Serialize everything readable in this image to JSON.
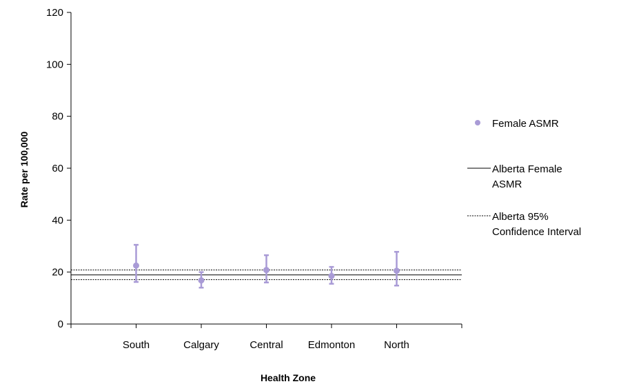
{
  "chart_data": {
    "type": "scatter",
    "title": "",
    "xlabel": "Health Zone",
    "ylabel": "Rate per 100,000",
    "ylim": [
      0,
      120
    ],
    "yticks": [
      0,
      20,
      40,
      60,
      80,
      100,
      120
    ],
    "grid": false,
    "legend_position": "right",
    "categories": [
      "South",
      "Calgary",
      "Central",
      "Edmonton",
      "North"
    ],
    "series": [
      {
        "name": "Female ASMR",
        "values": [
          22.5,
          16.8,
          20.8,
          18.5,
          20.5
        ],
        "lower": [
          16.2,
          14.0,
          16.0,
          15.5,
          14.8
        ],
        "upper": [
          30.5,
          20.0,
          26.5,
          22.0,
          27.8
        ],
        "color": "#a99bd6"
      }
    ],
    "reference_lines": [
      {
        "name": "Alberta Female ASMR",
        "legend_lines": [
          "Alberta Female",
          "ASMR"
        ],
        "value": 18.9,
        "style": "solid",
        "color": "#000000"
      },
      {
        "name": "Alberta 95% Confidence Interval",
        "legend_lines": [
          "Alberta 95%",
          "Confidence Interval"
        ],
        "values": [
          17.1,
          20.8
        ],
        "style": "dotted",
        "color": "#000000"
      }
    ]
  }
}
